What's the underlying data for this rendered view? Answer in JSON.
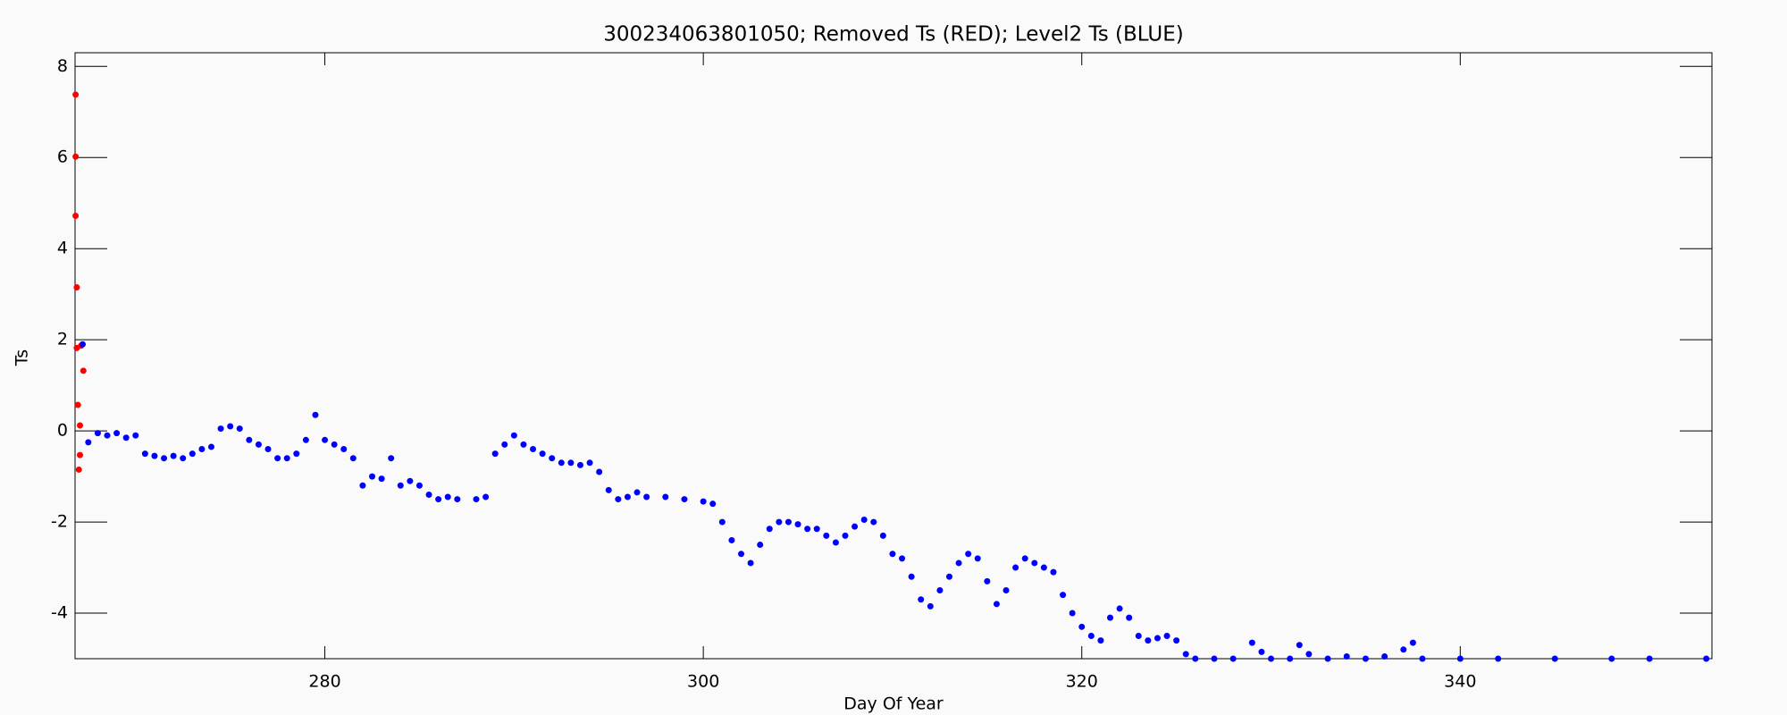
{
  "chart_data": {
    "type": "scatter",
    "title": "300234063801050; Removed Ts (RED); Level2 Ts (BLUE)",
    "x_label": "Day Of Year",
    "y_label": "Ts",
    "xlim": [
      266.8,
      353.3
    ],
    "ylim": [
      -5,
      8.3
    ],
    "xticks": [
      280,
      300,
      320,
      340
    ],
    "yticks": [
      -4,
      -2,
      0,
      2,
      4,
      6,
      8
    ],
    "series": [
      {
        "color": "#ff0000",
        "x": [
          266.83,
          266.83,
          266.83,
          266.89,
          266.89,
          267.12,
          267.24,
          266.95,
          267.06,
          267.06,
          267.0
        ],
        "values": [
          7.38,
          6.02,
          4.72,
          3.15,
          1.82,
          1.87,
          1.32,
          0.57,
          0.12,
          -0.53,
          -0.85
        ]
      },
      {
        "color": "#0000ff",
        "x": [
          267.2,
          267.5,
          268,
          268.5,
          269,
          269.5,
          270,
          270.5,
          271,
          271.5,
          272,
          272.5,
          273,
          273.5,
          274,
          274.5,
          275,
          275.5,
          276,
          276.5,
          277,
          277.5,
          278,
          278.5,
          279,
          279.5,
          280,
          280.5,
          281,
          281.5,
          282,
          282.5,
          283,
          283.5,
          284,
          284.5,
          285,
          285.5,
          286,
          286.5,
          287,
          288,
          288.5,
          289,
          289.5,
          290,
          290.5,
          291,
          291.5,
          292,
          292.5,
          293,
          293.5,
          294,
          294.5,
          295,
          295.5,
          296,
          296.5,
          297,
          298,
          299,
          300,
          300.5,
          301,
          301.5,
          302,
          302.5,
          303,
          303.5,
          304,
          304.5,
          305,
          305.5,
          306,
          306.5,
          307,
          307.5,
          308,
          308.5,
          309,
          309.5,
          310,
          310.5,
          311,
          311.5,
          312,
          312.5,
          313,
          313.5,
          314,
          314.5,
          315,
          315.5,
          316,
          316.5,
          317,
          317.5,
          318,
          318.5,
          319,
          319.5,
          320,
          320.5,
          321,
          321.5,
          322,
          322.5,
          323,
          323.5,
          324,
          324.5,
          325,
          325.5,
          326,
          327,
          328,
          329,
          329.5,
          330,
          331,
          331.5,
          332,
          333,
          334,
          335,
          336,
          337,
          337.5,
          338,
          340,
          342,
          345,
          348,
          350,
          353
        ],
        "values": [
          1.9,
          -0.25,
          -0.05,
          -0.1,
          -0.05,
          -0.15,
          -0.1,
          -0.5,
          -0.55,
          -0.6,
          -0.55,
          -0.6,
          -0.5,
          -0.4,
          -0.35,
          0.05,
          0.1,
          0.05,
          -0.2,
          -0.3,
          -0.4,
          -0.6,
          -0.6,
          -0.5,
          -0.2,
          0.35,
          -0.2,
          -0.3,
          -0.4,
          -0.6,
          -1.2,
          -1.0,
          -1.05,
          -0.6,
          -1.2,
          -1.1,
          -1.2,
          -1.4,
          -1.5,
          -1.45,
          -1.5,
          -1.5,
          -1.45,
          -0.5,
          -0.3,
          -0.1,
          -0.3,
          -0.4,
          -0.5,
          -0.6,
          -0.7,
          -0.7,
          -0.75,
          -0.7,
          -0.9,
          -1.3,
          -1.5,
          -1.45,
          -1.35,
          -1.45,
          -1.45,
          -1.5,
          -1.55,
          -1.6,
          -2.0,
          -2.4,
          -2.7,
          -2.9,
          -2.5,
          -2.15,
          -2.0,
          -2.0,
          -2.05,
          -2.15,
          -2.15,
          -2.3,
          -2.45,
          -2.3,
          -2.1,
          -1.95,
          -2.0,
          -2.3,
          -2.7,
          -2.8,
          -3.2,
          -3.7,
          -3.85,
          -3.5,
          -3.2,
          -2.9,
          -2.7,
          -2.8,
          -3.3,
          -3.8,
          -3.5,
          -3.0,
          -2.8,
          -2.9,
          -3.0,
          -3.1,
          -3.6,
          -4.0,
          -4.3,
          -4.5,
          -4.6,
          -4.1,
          -3.9,
          -4.1,
          -4.5,
          -4.6,
          -4.55,
          -4.5,
          -4.6,
          -4.9,
          -5,
          -5,
          -5,
          -4.65,
          -4.85,
          -5,
          -5,
          -4.7,
          -4.9,
          -5,
          -4.95,
          -5,
          -4.95,
          -4.8,
          -4.65,
          -5,
          -5,
          -5,
          -5,
          -5,
          -5,
          -5
        ]
      }
    ]
  }
}
